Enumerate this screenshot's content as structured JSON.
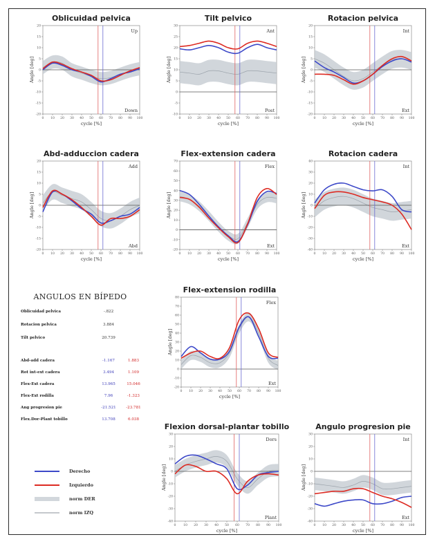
{
  "colors": {
    "right": "#3c48c8",
    "left": "#dd2a22",
    "norm_band": "#c6ccd2",
    "norm_line": "#9aa2aa",
    "cursor_blue": "#6a6ad0",
    "cursor_red": "#e06060"
  },
  "x_axis_label": "cycle [%]",
  "y_axis_label": "Angle [deg]",
  "x_ticks": [
    "0",
    "10",
    "20",
    "30",
    "40",
    "50",
    "60",
    "70",
    "80",
    "90",
    "100"
  ],
  "static": {
    "title": "ANGULOS EN BÍPEDO",
    "single_rows": [
      {
        "label": "Oblicuidad pelvica",
        "value": "-.822"
      },
      {
        "label": "Rotacion pelvica",
        "value": "3.884"
      },
      {
        "label": "Tilt pelvico",
        "value": "20.739"
      }
    ],
    "double_rows": [
      {
        "label": "Abd-add cadera",
        "right": "-1.167",
        "left": "1.883"
      },
      {
        "label": "Rot int-ext cadera",
        "right": "3.494",
        "left": "1.109"
      },
      {
        "label": "Flex-Ext cadera",
        "right": "13.965",
        "left": "15.046"
      },
      {
        "label": "Flex-Ext rodilla",
        "right": "7.96",
        "left": "-1.323"
      },
      {
        "label": "Ang progresion pie",
        "right": "-21.521",
        "left": "-23.781"
      },
      {
        "label": "Flex.Dor-Plant tobillo",
        "right": "13.708",
        "left": "6.038"
      }
    ]
  },
  "legend": [
    {
      "label": "Derecho",
      "kind": "line",
      "color": "#3c48c8"
    },
    {
      "label": "Izquierdo",
      "kind": "line",
      "color": "#dd2a22"
    },
    {
      "label": "norm DER",
      "kind": "band",
      "color": "#d2d7dc"
    },
    {
      "label": "norm IZQ",
      "kind": "line",
      "color": "#8a929a"
    }
  ],
  "chart_data": [
    {
      "type": "line",
      "title": "Oblicuidad pelvica",
      "top_label": "Up",
      "bottom_label": "Down",
      "y_ticks": [
        "20",
        "15",
        "10",
        "5",
        "0",
        "-5",
        "-10",
        "-15",
        "-20"
      ],
      "ylim": [
        -20,
        20
      ],
      "zero": 0,
      "cursor_blue": 62,
      "cursor_red": 57,
      "x": [
        0,
        10,
        20,
        30,
        40,
        50,
        60,
        70,
        80,
        90,
        100
      ],
      "norm": [
        1,
        3.5,
        3,
        0,
        -1.5,
        -3,
        -4,
        -3.5,
        -2,
        -0.5,
        0.5
      ],
      "norm_spread": 3,
      "series": [
        {
          "name": "Derecho",
          "values": [
            0,
            3,
            2,
            0,
            -1,
            -3,
            -5.5,
            -4,
            -2,
            -1,
            0.5
          ]
        },
        {
          "name": "Izquierdo",
          "values": [
            0.5,
            3.5,
            2.5,
            0.5,
            -1,
            -2.5,
            -5,
            -4.5,
            -2.5,
            -0.5,
            1
          ]
        }
      ]
    },
    {
      "type": "line",
      "title": "Tilt pelvico",
      "top_label": "Ant",
      "bottom_label": "Post",
      "y_ticks": [
        "30",
        "25",
        "20",
        "15",
        "10",
        "5",
        "0",
        "-5",
        "-10"
      ],
      "ylim": [
        -10,
        30
      ],
      "zero": 0,
      "cursor_blue": 62,
      "cursor_red": 57,
      "x": [
        0,
        10,
        20,
        30,
        40,
        50,
        60,
        70,
        80,
        90,
        100
      ],
      "norm": [
        9,
        8.5,
        8,
        9.5,
        9.5,
        8.5,
        8,
        9.5,
        9.5,
        9,
        8.5
      ],
      "norm_spread": 5,
      "series": [
        {
          "name": "Derecho",
          "values": [
            19.5,
            19,
            20,
            21,
            20,
            18,
            17.5,
            20,
            21.5,
            20,
            19
          ]
        },
        {
          "name": "Izquierdo",
          "values": [
            20.5,
            21,
            22,
            23,
            22,
            20,
            19.5,
            22,
            23,
            22,
            20.5
          ]
        }
      ]
    },
    {
      "type": "line",
      "title": "Rotacion pelvica",
      "top_label": "Int",
      "bottom_label": "Ext",
      "y_ticks": [
        "20",
        "15",
        "10",
        "5",
        "0",
        "-5",
        "-10",
        "-15",
        "-20"
      ],
      "ylim": [
        -20,
        20
      ],
      "zero": 0,
      "cursor_blue": 62,
      "cursor_red": 57,
      "x": [
        0,
        10,
        20,
        30,
        40,
        50,
        60,
        70,
        80,
        90,
        100
      ],
      "norm": [
        5,
        3,
        0,
        -3,
        -5,
        -4,
        -1,
        2,
        4.5,
        5,
        4
      ],
      "norm_spread": 4,
      "series": [
        {
          "name": "Derecho",
          "values": [
            4,
            1,
            -1,
            -3.5,
            -6,
            -5,
            -2,
            1.5,
            4,
            5,
            3.5
          ]
        },
        {
          "name": "Izquierdo",
          "values": [
            -2,
            -2,
            -2.5,
            -4.5,
            -6.5,
            -5,
            -2,
            2,
            5,
            6,
            4
          ]
        }
      ]
    },
    {
      "type": "line",
      "title": "Abd-adduccion cadera",
      "top_label": "Add",
      "bottom_label": "Abd",
      "y_ticks": [
        "20",
        "15",
        "10",
        "5",
        "0",
        "-5",
        "-10",
        "-15",
        "-20"
      ],
      "ylim": [
        -20,
        20
      ],
      "zero": 0,
      "cursor_blue": 62,
      "cursor_red": 57,
      "x": [
        0,
        10,
        20,
        30,
        40,
        50,
        60,
        70,
        80,
        90,
        100
      ],
      "norm": [
        1,
        6,
        4.5,
        3,
        1.5,
        -2,
        -6,
        -7,
        -5,
        -2,
        0
      ],
      "norm_spread": 3.5,
      "series": [
        {
          "name": "Derecho",
          "values": [
            -3,
            6,
            5,
            2,
            -1.5,
            -4,
            -8,
            -7,
            -5,
            -4,
            -1
          ]
        },
        {
          "name": "Izquierdo",
          "values": [
            -1,
            6.5,
            5,
            2.5,
            -1,
            -5,
            -9,
            -6,
            -6,
            -5,
            -2
          ]
        }
      ]
    },
    {
      "type": "line",
      "title": "Flex-extension cadera",
      "top_label": "Flex",
      "bottom_label": "Ext",
      "y_ticks": [
        "70",
        "60",
        "50",
        "40",
        "30",
        "20",
        "10",
        "0",
        "-10",
        "-20"
      ],
      "ylim": [
        -20,
        70
      ],
      "zero": 0,
      "cursor_blue": 62,
      "cursor_red": 57,
      "x": [
        0,
        10,
        20,
        30,
        40,
        50,
        60,
        70,
        80,
        90,
        100
      ],
      "norm": [
        34,
        31,
        24,
        14,
        3,
        -6,
        -9,
        7,
        26,
        33,
        32
      ],
      "norm_spread": 5,
      "series": [
        {
          "name": "Derecho",
          "values": [
            40,
            36,
            26,
            14,
            3,
            -6,
            -12,
            5,
            29,
            39,
            37
          ]
        },
        {
          "name": "Izquierdo",
          "values": [
            33,
            31,
            23,
            12,
            2,
            -7,
            -13,
            6,
            33,
            42,
            36
          ]
        }
      ]
    },
    {
      "type": "line",
      "title": "Rotacion cadera",
      "top_label": "Int",
      "bottom_label": "Ext",
      "y_ticks": [
        "40",
        "30",
        "20",
        "10",
        "0",
        "-10",
        "-20",
        "-30",
        "-40"
      ],
      "ylim": [
        -40,
        40
      ],
      "zero": 0,
      "cursor_blue": 62,
      "cursor_red": 57,
      "x": [
        0,
        10,
        20,
        30,
        40,
        50,
        60,
        70,
        80,
        90,
        100
      ],
      "norm": [
        -3,
        4,
        7,
        8,
        6,
        2,
        -2,
        -4,
        -6,
        -5,
        -4
      ],
      "norm_spread": 8,
      "series": [
        {
          "name": "Derecho",
          "values": [
            2,
            14,
            19,
            20,
            17,
            14,
            13,
            14,
            8,
            -4,
            -6
          ]
        },
        {
          "name": "Izquierdo",
          "values": [
            -3,
            9,
            12,
            12,
            10,
            7,
            5,
            3,
            0,
            -8,
            -22
          ]
        }
      ]
    },
    {
      "type": "line",
      "title": "Flex-extension rodilla",
      "top_label": "Flex",
      "bottom_label": "Ext",
      "y_ticks": [
        "80",
        "70",
        "60",
        "50",
        "40",
        "30",
        "20",
        "10",
        "0",
        "-10",
        "-20"
      ],
      "ylim": [
        -20,
        80
      ],
      "zero": 0,
      "cursor_blue": 62,
      "cursor_red": 57,
      "x": [
        0,
        10,
        20,
        30,
        40,
        50,
        60,
        70,
        80,
        90,
        100
      ],
      "norm": [
        5,
        15,
        13,
        7,
        7,
        18,
        45,
        58,
        40,
        12,
        4
      ],
      "norm_spread": 5,
      "series": [
        {
          "name": "Derecho",
          "values": [
            14,
            25,
            18,
            11,
            11,
            20,
            47,
            58,
            36,
            14,
            12
          ]
        },
        {
          "name": "Izquierdo",
          "values": [
            12,
            18,
            20,
            14,
            12,
            24,
            55,
            62,
            45,
            18,
            13
          ]
        }
      ]
    },
    {
      "type": "line",
      "title": "Flexion dorsal-plantar tobillo",
      "top_label": "Dors",
      "bottom_label": "Plant",
      "y_ticks": [
        "30",
        "20",
        "10",
        "0",
        "-10",
        "-20",
        "-30",
        "-40"
      ],
      "ylim": [
        -40,
        30
      ],
      "zero": 0,
      "cursor_blue": 62,
      "cursor_red": 57,
      "x": [
        0,
        10,
        20,
        30,
        40,
        50,
        60,
        70,
        80,
        90,
        100
      ],
      "norm": [
        0,
        5,
        8,
        10,
        12,
        8,
        -6,
        -13,
        -6,
        0,
        1
      ],
      "norm_spread": 5,
      "series": [
        {
          "name": "Derecho",
          "values": [
            6,
            12,
            13,
            10,
            6,
            2,
            -14,
            -11,
            -3,
            -1,
            0
          ]
        },
        {
          "name": "Izquierdo",
          "values": [
            -2,
            5,
            4,
            0,
            0,
            -6,
            -18,
            -8,
            -3,
            -2,
            -3
          ]
        }
      ]
    },
    {
      "type": "line",
      "title": "Angulo progresion pie",
      "top_label": "Int",
      "bottom_label": "Ext",
      "y_ticks": [
        "30",
        "20",
        "10",
        "0",
        "-10",
        "-20",
        "-30",
        "-40"
      ],
      "ylim": [
        -40,
        30
      ],
      "zero": 0,
      "cursor_blue": 62,
      "cursor_red": 57,
      "x": [
        0,
        10,
        20,
        30,
        40,
        50,
        60,
        70,
        80,
        90,
        100
      ],
      "norm": [
        -10,
        -11,
        -12,
        -13,
        -11,
        -8,
        -10,
        -14,
        -14,
        -13,
        -12
      ],
      "norm_spread": 5,
      "series": [
        {
          "name": "Derecho",
          "values": [
            -26,
            -28,
            -26,
            -24,
            -23,
            -23,
            -26,
            -26,
            -24,
            -21,
            -20
          ]
        },
        {
          "name": "Izquierdo",
          "values": [
            -18,
            -17,
            -16,
            -16,
            -14,
            -14,
            -17,
            -20,
            -22,
            -25,
            -29
          ]
        }
      ]
    }
  ]
}
